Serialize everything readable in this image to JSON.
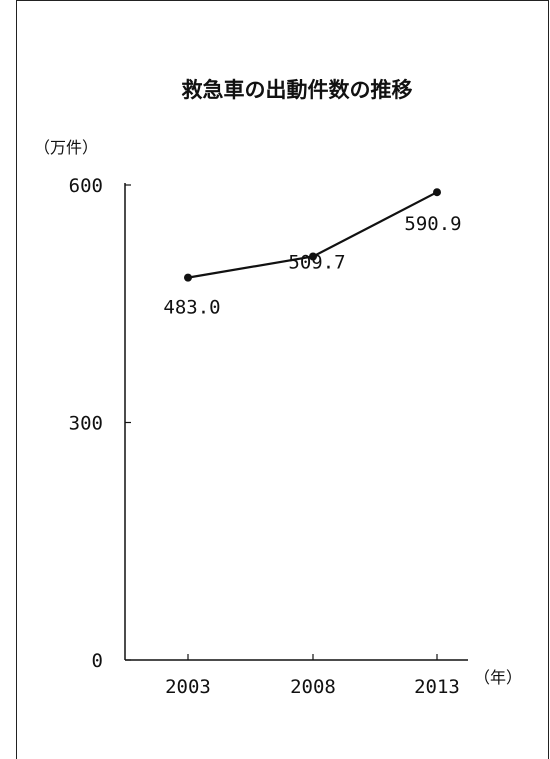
{
  "chart_data": {
    "type": "line",
    "title": "救急車の出動件数の推移",
    "ylabel": "（万件）",
    "xlabel": "（年）",
    "categories": [
      "2003",
      "2008",
      "2013"
    ],
    "series": [
      {
        "values": [
          483.0,
          509.7,
          590.9
        ]
      }
    ],
    "data_labels": [
      "483.0",
      "509.7",
      "590.9"
    ],
    "yticks": [
      0,
      300,
      600
    ],
    "ytick_labels": [
      "0",
      "300",
      "600"
    ],
    "ylim": [
      0,
      600
    ],
    "grid": false,
    "line_color": "#111111"
  }
}
